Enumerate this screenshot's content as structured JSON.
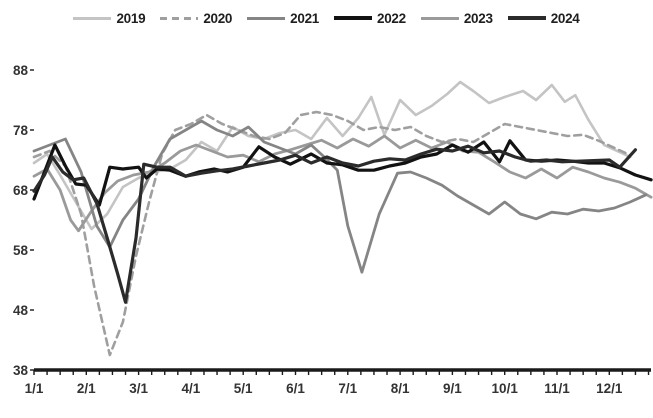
{
  "chart_data": {
    "type": "line",
    "title": "",
    "xlabel": "",
    "ylabel": "",
    "x_axis": {
      "labels": [
        "1/1",
        "2/1",
        "3/1",
        "4/1",
        "5/1",
        "6/1",
        "7/1",
        "8/1",
        "9/1",
        "10/1",
        "11/1",
        "12/1"
      ],
      "grid": false
    },
    "y_axis": {
      "ticks": [
        38,
        48,
        58,
        68,
        78,
        88
      ],
      "range": [
        38,
        88
      ],
      "grid": false
    },
    "legend_position": "top",
    "axis_color": "#1a1a1a",
    "series": [
      {
        "name": "2019",
        "color": "#c4c4c4",
        "dashed": false,
        "width": 2.6,
        "points": [
          [
            1.0,
            72.5
          ],
          [
            1.25,
            74.0
          ],
          [
            1.5,
            70.5
          ],
          [
            1.8,
            66.0
          ],
          [
            2.1,
            61.5
          ],
          [
            2.4,
            64.0
          ],
          [
            2.7,
            68.5
          ],
          [
            3.0,
            70.0
          ],
          [
            3.3,
            71.0
          ],
          [
            3.6,
            71.5
          ],
          [
            3.9,
            73.0
          ],
          [
            4.2,
            76.0
          ],
          [
            4.5,
            74.5
          ],
          [
            4.8,
            78.5
          ],
          [
            5.1,
            77.0
          ],
          [
            5.4,
            76.5
          ],
          [
            5.7,
            77.5
          ],
          [
            6.0,
            78.0
          ],
          [
            6.3,
            76.5
          ],
          [
            6.6,
            80.0
          ],
          [
            6.9,
            77.0
          ],
          [
            7.2,
            80.0
          ],
          [
            7.45,
            83.5
          ],
          [
            7.7,
            77.2
          ],
          [
            8.0,
            83.0
          ],
          [
            8.3,
            80.5
          ],
          [
            8.6,
            82.0
          ],
          [
            8.9,
            84.0
          ],
          [
            9.15,
            86.0
          ],
          [
            9.4,
            84.5
          ],
          [
            9.7,
            82.5
          ],
          [
            10.0,
            83.5
          ],
          [
            10.35,
            84.5
          ],
          [
            10.6,
            83.0
          ],
          [
            10.9,
            85.5
          ],
          [
            11.15,
            82.7
          ],
          [
            11.35,
            83.8
          ],
          [
            11.6,
            79.7
          ],
          [
            11.9,
            75.5
          ],
          [
            12.15,
            74.5
          ],
          [
            12.4,
            73.5
          ]
        ]
      },
      {
        "name": "2020",
        "color": "#9f9f9f",
        "dashed": true,
        "width": 2.6,
        "points": [
          [
            1.0,
            73.5
          ],
          [
            1.3,
            74.5
          ],
          [
            1.6,
            72.0
          ],
          [
            1.9,
            64.0
          ],
          [
            2.15,
            52.0
          ],
          [
            2.45,
            40.5
          ],
          [
            2.7,
            46.0
          ],
          [
            2.95,
            57.0
          ],
          [
            3.2,
            66.0
          ],
          [
            3.45,
            74.0
          ],
          [
            3.7,
            78.0
          ],
          [
            4.0,
            79.0
          ],
          [
            4.3,
            80.5
          ],
          [
            4.6,
            79.0
          ],
          [
            4.9,
            78.0
          ],
          [
            5.2,
            77.0
          ],
          [
            5.5,
            76.5
          ],
          [
            5.8,
            77.5
          ],
          [
            6.1,
            80.5
          ],
          [
            6.4,
            81.0
          ],
          [
            6.7,
            80.5
          ],
          [
            7.0,
            79.5
          ],
          [
            7.3,
            78.0
          ],
          [
            7.6,
            78.5
          ],
          [
            7.9,
            78.0
          ],
          [
            8.2,
            78.5
          ],
          [
            8.5,
            77.0
          ],
          [
            8.8,
            76.0
          ],
          [
            9.1,
            76.5
          ],
          [
            9.4,
            76.0
          ],
          [
            9.7,
            77.5
          ],
          [
            10.0,
            79.0
          ],
          [
            10.3,
            78.5
          ],
          [
            10.6,
            78.0
          ],
          [
            10.9,
            77.5
          ],
          [
            11.2,
            77.0
          ],
          [
            11.5,
            77.2
          ],
          [
            11.8,
            76.2
          ],
          [
            12.1,
            75.0
          ],
          [
            12.4,
            73.8
          ]
        ]
      },
      {
        "name": "2021",
        "color": "#858585",
        "dashed": false,
        "width": 2.8,
        "points": [
          [
            1.0,
            74.5
          ],
          [
            1.3,
            75.5
          ],
          [
            1.6,
            76.5
          ],
          [
            1.9,
            71.0
          ],
          [
            2.2,
            62.0
          ],
          [
            2.45,
            58.5
          ],
          [
            2.7,
            63.0
          ],
          [
            3.0,
            66.5
          ],
          [
            3.3,
            72.0
          ],
          [
            3.6,
            76.5
          ],
          [
            3.9,
            78.0
          ],
          [
            4.2,
            79.5
          ],
          [
            4.5,
            78.0
          ],
          [
            4.8,
            77.0
          ],
          [
            5.1,
            78.5
          ],
          [
            5.4,
            76.0
          ],
          [
            5.7,
            75.0
          ],
          [
            6.0,
            74.0
          ],
          [
            6.3,
            75.5
          ],
          [
            6.55,
            73.5
          ],
          [
            6.8,
            71.3
          ],
          [
            7.0,
            62.0
          ],
          [
            7.27,
            54.3
          ],
          [
            7.6,
            64.0
          ],
          [
            7.95,
            70.8
          ],
          [
            8.2,
            71.0
          ],
          [
            8.5,
            70.0
          ],
          [
            8.8,
            68.8
          ],
          [
            9.1,
            67.0
          ],
          [
            9.4,
            65.5
          ],
          [
            9.7,
            64.0
          ],
          [
            10.0,
            66.0
          ],
          [
            10.3,
            64.0
          ],
          [
            10.6,
            63.2
          ],
          [
            10.9,
            64.3
          ],
          [
            11.2,
            64.0
          ],
          [
            11.5,
            64.8
          ],
          [
            11.8,
            64.5
          ],
          [
            12.1,
            65.0
          ],
          [
            12.4,
            66.0
          ],
          [
            12.7,
            67.2
          ]
        ]
      },
      {
        "name": "2022",
        "color": "#121212",
        "dashed": false,
        "width": 3.2,
        "points": [
          [
            1.0,
            66.5
          ],
          [
            1.2,
            71.0
          ],
          [
            1.4,
            75.5
          ],
          [
            1.6,
            72.0
          ],
          [
            1.8,
            69.0
          ],
          [
            2.0,
            68.8
          ],
          [
            2.25,
            65.5
          ],
          [
            2.45,
            71.8
          ],
          [
            2.7,
            71.5
          ],
          [
            3.0,
            71.8
          ],
          [
            3.15,
            70.0
          ],
          [
            3.35,
            71.5
          ],
          [
            3.6,
            71.3
          ],
          [
            3.9,
            70.3
          ],
          [
            4.15,
            71.0
          ],
          [
            4.45,
            71.5
          ],
          [
            4.7,
            71.0
          ],
          [
            5.0,
            71.8
          ],
          [
            5.3,
            75.2
          ],
          [
            5.6,
            73.5
          ],
          [
            5.9,
            72.3
          ],
          [
            6.3,
            74.0
          ],
          [
            6.6,
            72.5
          ],
          [
            6.9,
            72.2
          ],
          [
            7.2,
            71.3
          ],
          [
            7.5,
            71.3
          ],
          [
            7.8,
            72.0
          ],
          [
            8.1,
            72.5
          ],
          [
            8.4,
            73.5
          ],
          [
            8.7,
            74.0
          ],
          [
            9.0,
            75.5
          ],
          [
            9.3,
            74.3
          ],
          [
            9.6,
            76.0
          ],
          [
            9.9,
            72.7
          ],
          [
            10.1,
            76.2
          ],
          [
            10.4,
            73.0
          ],
          [
            10.7,
            72.8
          ],
          [
            11.0,
            73.0
          ],
          [
            11.3,
            72.8
          ],
          [
            11.6,
            72.5
          ],
          [
            11.9,
            72.5
          ],
          [
            12.2,
            71.7
          ],
          [
            12.5,
            70.5
          ],
          [
            12.8,
            69.7
          ]
        ]
      },
      {
        "name": "2023",
        "color": "#9a9a9a",
        "dashed": false,
        "width": 2.8,
        "points": [
          [
            1.0,
            70.3
          ],
          [
            1.25,
            71.5
          ],
          [
            1.5,
            68.0
          ],
          [
            1.7,
            63.0
          ],
          [
            1.85,
            61.2
          ],
          [
            2.1,
            64.5
          ],
          [
            2.35,
            67.5
          ],
          [
            2.6,
            69.5
          ],
          [
            2.9,
            70.5
          ],
          [
            3.2,
            71.0
          ],
          [
            3.5,
            72.5
          ],
          [
            3.8,
            74.5
          ],
          [
            4.1,
            75.5
          ],
          [
            4.4,
            74.5
          ],
          [
            4.7,
            73.5
          ],
          [
            5.0,
            73.8
          ],
          [
            5.3,
            72.7
          ],
          [
            5.6,
            74.0
          ],
          [
            5.9,
            74.7
          ],
          [
            6.2,
            75.5
          ],
          [
            6.5,
            76.3
          ],
          [
            6.8,
            75.0
          ],
          [
            7.1,
            76.5
          ],
          [
            7.4,
            75.3
          ],
          [
            7.7,
            77.0
          ],
          [
            8.0,
            75.0
          ],
          [
            8.3,
            76.3
          ],
          [
            8.6,
            75.0
          ],
          [
            8.9,
            76.0
          ],
          [
            9.2,
            74.5
          ],
          [
            9.5,
            74.3
          ],
          [
            9.8,
            72.7
          ],
          [
            10.1,
            71.0
          ],
          [
            10.4,
            70.0
          ],
          [
            10.7,
            71.5
          ],
          [
            11.0,
            70.0
          ],
          [
            11.3,
            71.8
          ],
          [
            11.6,
            71.0
          ],
          [
            11.9,
            70.0
          ],
          [
            12.2,
            69.3
          ],
          [
            12.5,
            68.3
          ],
          [
            12.8,
            66.8
          ]
        ]
      },
      {
        "name": "2024",
        "color": "#2b2b2b",
        "dashed": false,
        "width": 3.2,
        "points": [
          [
            1.0,
            67.8
          ],
          [
            1.2,
            70.5
          ],
          [
            1.35,
            73.5
          ],
          [
            1.55,
            71.0
          ],
          [
            1.75,
            69.7
          ],
          [
            1.95,
            70.0
          ],
          [
            2.2,
            65.8
          ],
          [
            2.4,
            60.0
          ],
          [
            2.6,
            54.0
          ],
          [
            2.75,
            49.3
          ],
          [
            2.95,
            60.0
          ],
          [
            3.1,
            72.3
          ],
          [
            3.35,
            71.8
          ],
          [
            3.6,
            71.8
          ],
          [
            3.9,
            70.3
          ],
          [
            4.2,
            70.8
          ],
          [
            4.5,
            71.2
          ],
          [
            4.8,
            71.5
          ],
          [
            5.1,
            72.0
          ],
          [
            5.4,
            72.5
          ],
          [
            5.7,
            73.0
          ],
          [
            6.0,
            73.8
          ],
          [
            6.3,
            72.5
          ],
          [
            6.6,
            73.5
          ],
          [
            6.9,
            72.5
          ],
          [
            7.2,
            72.0
          ],
          [
            7.5,
            72.8
          ],
          [
            7.8,
            73.2
          ],
          [
            8.1,
            73.0
          ],
          [
            8.4,
            74.0
          ],
          [
            8.7,
            74.8
          ],
          [
            9.0,
            74.5
          ],
          [
            9.3,
            75.3
          ],
          [
            9.6,
            74.2
          ],
          [
            9.9,
            74.5
          ],
          [
            10.2,
            73.5
          ],
          [
            10.5,
            72.8
          ],
          [
            10.8,
            73.0
          ],
          [
            11.1,
            72.7
          ],
          [
            11.4,
            72.8
          ],
          [
            11.7,
            72.9
          ],
          [
            12.0,
            73.0
          ],
          [
            12.2,
            71.8
          ],
          [
            12.5,
            74.7
          ]
        ]
      }
    ]
  }
}
